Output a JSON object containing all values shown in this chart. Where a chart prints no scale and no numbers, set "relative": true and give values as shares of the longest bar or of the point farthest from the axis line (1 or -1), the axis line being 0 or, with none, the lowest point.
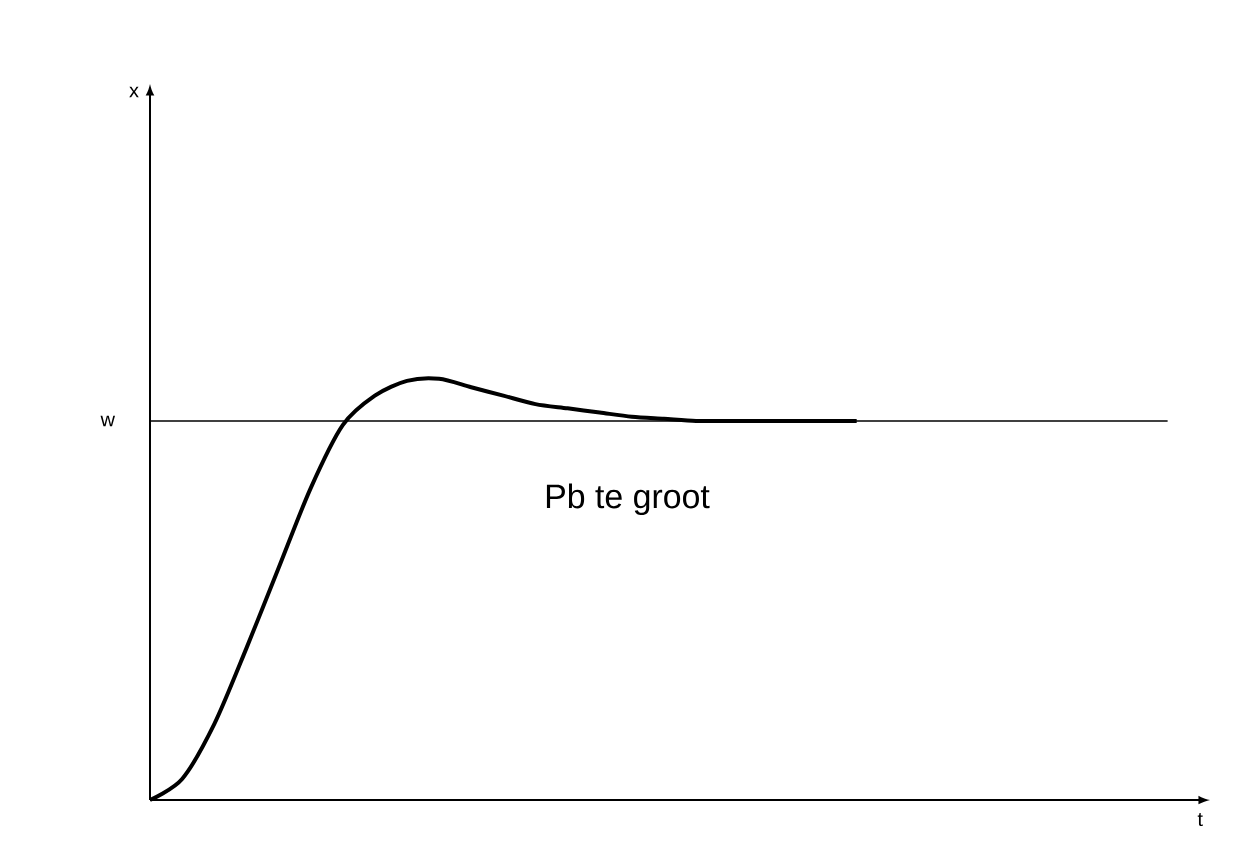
{
  "chart_data": {
    "type": "line",
    "relative": true,
    "xlabel": "t",
    "categories": [
      null,
      null,
      null,
      null,
      null,
      null,
      null,
      null,
      null,
      null,
      null,
      null,
      null,
      null,
      null,
      null,
      null,
      null,
      null,
      null,
      null,
      null,
      null,
      null,
      null,
      null,
      null,
      null,
      null,
      null,
      null,
      null,
      null,
      null
    ],
    "series": [
      {
        "color": "#000000",
        "values": [
          0,
          0.05,
          0.18,
          0.36,
          0.55,
          0.74,
          0.89,
          0.96,
          0.995,
          1,
          0.98,
          0.96,
          0.94,
          0.93,
          0.92,
          0.91,
          0.905,
          0.9,
          0.9,
          0.9,
          0.9,
          0.9,
          0.9,
          null,
          null,
          null,
          null,
          null,
          null,
          null,
          null,
          null,
          null,
          null
        ]
      }
    ],
    "ref_lines": [
      {
        "axis": "y",
        "value": 0.9,
        "label": "w",
        "color": "#000000"
      }
    ],
    "annotations": [
      "x",
      "Pb te groot"
    ]
  }
}
